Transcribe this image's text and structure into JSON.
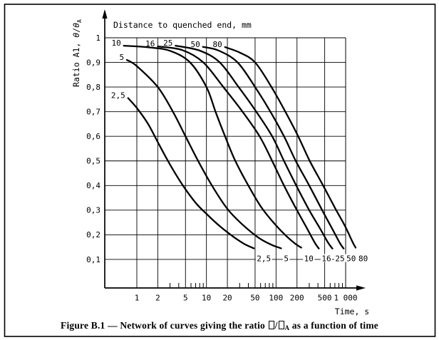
{
  "page": {
    "background": "#ffffff",
    "ink_color": "#000000"
  },
  "caption": {
    "seg1": "Figure B.1 — Network of curves giving the ratio ",
    "slash": "/",
    "subscript": "A",
    "seg2": " as a function of time"
  },
  "chart_data": {
    "type": "line",
    "title": "Distance to quenched end, mm",
    "xlabel": "Time, s",
    "ylabel": "Ratio A1, θ/θA",
    "ylabel_parts": {
      "prefix": "Ratio A1, ",
      "theta1": "θ",
      "slash": "/",
      "theta2": "θ",
      "sub": "A"
    },
    "x_scale": "log",
    "xlim": [
      0.35,
      1000
    ],
    "ylim": [
      0,
      1
    ],
    "grid": true,
    "legend_position": "labels-on-curves",
    "x_ticks": {
      "values": [
        1,
        2,
        5,
        10,
        20,
        50,
        100,
        200,
        500,
        1000
      ],
      "labels": [
        "1",
        "2",
        "5",
        "10",
        "20",
        "50",
        "100",
        "200",
        "500",
        "1 000"
      ]
    },
    "x_minor_ticks": [
      3,
      4,
      6,
      7,
      8,
      9,
      30,
      40,
      60,
      70,
      80,
      90,
      300,
      400,
      600,
      700,
      800,
      900
    ],
    "y_ticks": {
      "values": [
        1,
        0.9,
        0.8,
        0.7,
        0.6,
        0.5,
        0.4,
        0.3,
        0.2,
        0.1
      ],
      "labels": [
        "1",
        "0,9",
        "0,8",
        "0,7",
        "0,6",
        "0,5",
        "0,4",
        "0,3",
        "0,2",
        "0,1"
      ]
    },
    "series": [
      {
        "label": "2,5",
        "distance_mm": 2.5,
        "points": [
          [
            0.75,
            0.755
          ],
          [
            1.0,
            0.715
          ],
          [
            1.45,
            0.65
          ],
          [
            2.1,
            0.565
          ],
          [
            3.0,
            0.485
          ],
          [
            4.6,
            0.4
          ],
          [
            7.0,
            0.33
          ],
          [
            10,
            0.285
          ],
          [
            16,
            0.232
          ],
          [
            25,
            0.19
          ],
          [
            35,
            0.163
          ],
          [
            48,
            0.145
          ]
        ]
      },
      {
        "label": "5",
        "distance_mm": 5,
        "points": [
          [
            0.72,
            0.91
          ],
          [
            1.0,
            0.885
          ],
          [
            2.0,
            0.8
          ],
          [
            3.3,
            0.7
          ],
          [
            5.0,
            0.6
          ],
          [
            7.6,
            0.5
          ],
          [
            12,
            0.4
          ],
          [
            20,
            0.305
          ],
          [
            32,
            0.245
          ],
          [
            55,
            0.19
          ],
          [
            82,
            0.162
          ],
          [
            118,
            0.145
          ]
        ]
      },
      {
        "label": "10",
        "distance_mm": 10,
        "points": [
          [
            0.65,
            0.968
          ],
          [
            1.5,
            0.961
          ],
          [
            3.0,
            0.947
          ],
          [
            5.8,
            0.9
          ],
          [
            10,
            0.8
          ],
          [
            13.5,
            0.7
          ],
          [
            18.5,
            0.6
          ],
          [
            26,
            0.5
          ],
          [
            40,
            0.4
          ],
          [
            62,
            0.31
          ],
          [
            95,
            0.245
          ],
          [
            140,
            0.195
          ],
          [
            190,
            0.163
          ],
          [
            230,
            0.148
          ]
        ]
      },
      {
        "label": "16",
        "distance_mm": 16,
        "points": [
          [
            2.0,
            0.965
          ],
          [
            4.5,
            0.95
          ],
          [
            9.0,
            0.9
          ],
          [
            17.5,
            0.8
          ],
          [
            33,
            0.7
          ],
          [
            58,
            0.6
          ],
          [
            88,
            0.5
          ],
          [
            130,
            0.4
          ],
          [
            195,
            0.305
          ],
          [
            280,
            0.225
          ],
          [
            360,
            0.168
          ],
          [
            412,
            0.144
          ]
        ]
      },
      {
        "label": "25",
        "distance_mm": 25,
        "points": [
          [
            3.6,
            0.968
          ],
          [
            8.0,
            0.948
          ],
          [
            15.5,
            0.9
          ],
          [
            29,
            0.8
          ],
          [
            52,
            0.7
          ],
          [
            88,
            0.6
          ],
          [
            130,
            0.5
          ],
          [
            195,
            0.4
          ],
          [
            300,
            0.3
          ],
          [
            430,
            0.225
          ],
          [
            560,
            0.168
          ],
          [
            645,
            0.144
          ]
        ]
      },
      {
        "label": "50",
        "distance_mm": 50,
        "points": [
          [
            8.9,
            0.963
          ],
          [
            15,
            0.948
          ],
          [
            28,
            0.9
          ],
          [
            50,
            0.8
          ],
          [
            83,
            0.7
          ],
          [
            130,
            0.6
          ],
          [
            192,
            0.5
          ],
          [
            300,
            0.4
          ],
          [
            460,
            0.3
          ],
          [
            640,
            0.225
          ],
          [
            820,
            0.168
          ],
          [
            935,
            0.144
          ]
        ]
      },
      {
        "label": "80",
        "distance_mm": 80,
        "points": [
          [
            18.5,
            0.962
          ],
          [
            30,
            0.94
          ],
          [
            50,
            0.9
          ],
          [
            86,
            0.8
          ],
          [
            136,
            0.7
          ],
          [
            208,
            0.6
          ],
          [
            305,
            0.5
          ],
          [
            475,
            0.4
          ],
          [
            700,
            0.31
          ],
          [
            980,
            0.235
          ],
          [
            1250,
            0.172
          ],
          [
            1390,
            0.148
          ]
        ]
      }
    ]
  }
}
